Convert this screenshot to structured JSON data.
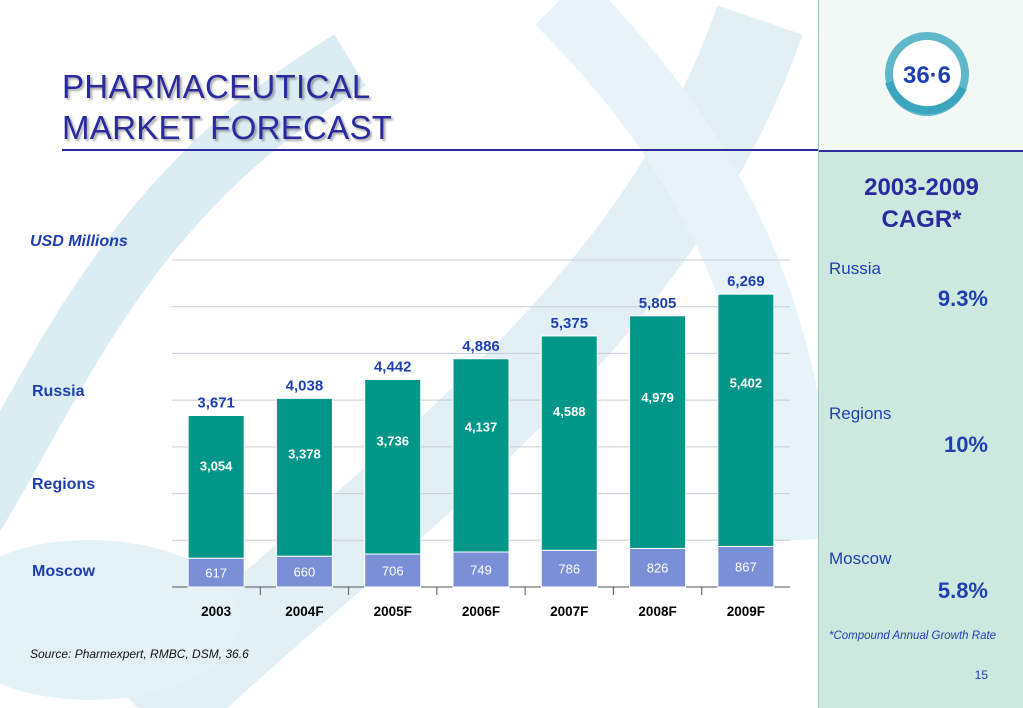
{
  "slide": {
    "title_line1": "PHARMACEUTICAL",
    "title_line2": "MARKET FORECAST",
    "units": "USD Millions",
    "legend_labels": [
      "Russia",
      "Regions",
      "Moscow"
    ],
    "source": "Source: Pharmexpert, RMBC, DSM, 36.6",
    "page_number": "15"
  },
  "logo": {
    "text": "36·6",
    "icon": "brand-logo-36-6"
  },
  "cagr": {
    "title_line1": "2003-2009",
    "title_line2": "CAGR*",
    "items": [
      {
        "name": "Russia",
        "value": "9.3%"
      },
      {
        "name": "Regions",
        "value": "10%"
      },
      {
        "name": "Moscow",
        "value": "5.8%"
      }
    ],
    "footnote": "*Compound Annual Growth Rate"
  },
  "colors": {
    "regions": "#009688",
    "moscow": "#7b8fd6",
    "text_blue": "#1f3fb0",
    "title_blue": "#2a2a9e",
    "panel_green": "#cce8df"
  },
  "chart_data": {
    "type": "bar",
    "stacked": true,
    "categories": [
      "2003",
      "2004F",
      "2005F",
      "2006F",
      "2007F",
      "2008F",
      "2009F"
    ],
    "series": [
      {
        "name": "Moscow",
        "values": [
          617,
          660,
          706,
          749,
          786,
          826,
          867
        ]
      },
      {
        "name": "Regions",
        "values": [
          3054,
          3378,
          3736,
          4137,
          4588,
          4979,
          5402
        ]
      }
    ],
    "totals": [
      3671,
      4038,
      4442,
      4886,
      5375,
      5805,
      6269
    ],
    "ylim": [
      0,
      7000
    ],
    "grid": true
  }
}
